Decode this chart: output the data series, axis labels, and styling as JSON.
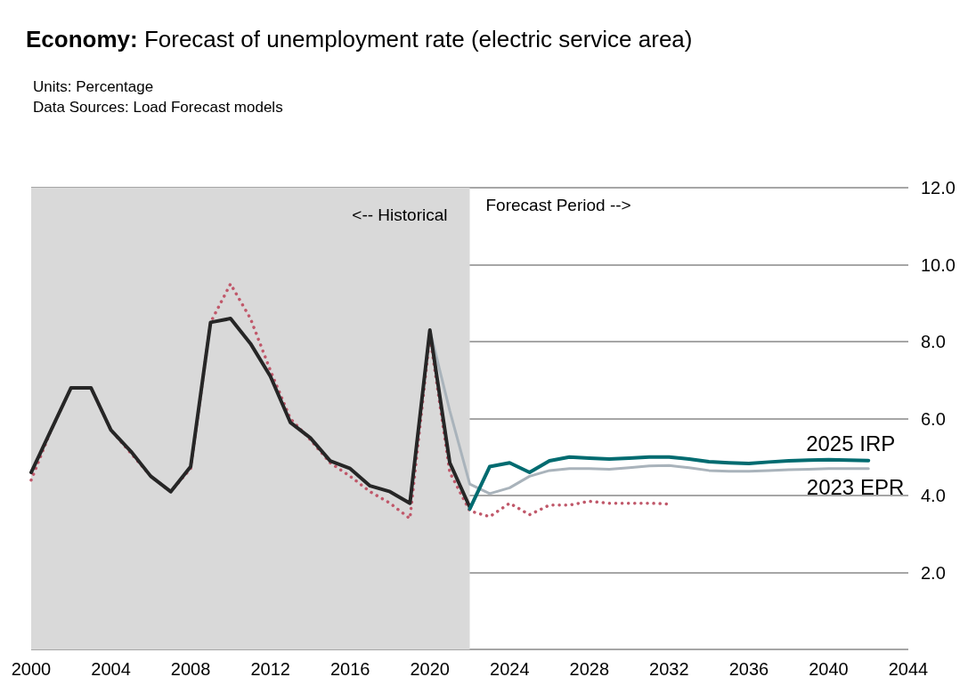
{
  "chart_data": {
    "type": "line",
    "title": "Economy: Forecast of unemployment rate (electric service area)",
    "annotations": [
      "Units: Percentage",
      "Data Sources: Load Forecast models",
      {
        "text": "Forecast Period -->",
        "x": 2022,
        "y": 11.5
      }
    ],
    "xlim": [
      2000,
      2044
    ],
    "xticks": [
      2000,
      2004,
      2008,
      2012,
      2016,
      2020,
      2024,
      2028,
      2032,
      2036,
      2040,
      2044
    ],
    "ylim": [
      0,
      12
    ],
    "yticks": [
      {
        "value": 0,
        "label": null
      },
      {
        "value": 2,
        "label": "2.0"
      },
      {
        "value": 4,
        "label": "4.0"
      },
      {
        "value": 6,
        "label": "6.0"
      },
      {
        "value": 8,
        "label": "8.0"
      },
      {
        "value": 10,
        "label": "10.0"
      },
      {
        "value": 12,
        "label": "12.0"
      }
    ],
    "grid": "y",
    "legend": false,
    "marker": "none",
    "bands": [
      {
        "axis": "x",
        "from": 2000,
        "to": 2022,
        "label": "<-- Historical",
        "color": "#d9d9d9"
      }
    ],
    "series": [
      {
        "name": "2023 EPR",
        "color": "#a9b3bb",
        "x": [
          2019,
          2020,
          2021,
          2022,
          2023,
          2024,
          2025,
          2026,
          2027,
          2028,
          2029,
          2030,
          2031,
          2032,
          2033,
          2034,
          2035,
          2036,
          2037,
          2038,
          2039,
          2040,
          2041,
          2042
        ],
        "values": [
          3.8,
          8.3,
          6.2,
          4.3,
          4.05,
          4.2,
          4.5,
          4.65,
          4.7,
          4.7,
          4.68,
          4.72,
          4.77,
          4.78,
          4.72,
          4.65,
          4.63,
          4.63,
          4.65,
          4.67,
          4.68,
          4.7,
          4.7,
          4.7
        ]
      },
      {
        "color": "#c0586a",
        "line_style": "dotted",
        "x": [
          2000,
          2001,
          2002,
          2003,
          2004,
          2005,
          2006,
          2007,
          2008,
          2009,
          2010,
          2011,
          2012,
          2013,
          2014,
          2015,
          2016,
          2017,
          2018,
          2019,
          2020,
          2021,
          2022,
          2023,
          2024,
          2025,
          2026,
          2027,
          2028,
          2029,
          2030,
          2031,
          2032
        ],
        "values": [
          4.4,
          5.7,
          6.8,
          6.8,
          5.7,
          5.1,
          4.5,
          4.1,
          4.7,
          8.5,
          9.5,
          8.6,
          7.25,
          6.0,
          5.45,
          4.85,
          4.5,
          4.1,
          3.8,
          3.4,
          8.15,
          4.6,
          3.6,
          3.45,
          3.8,
          3.5,
          3.75,
          3.75,
          3.85,
          3.8,
          3.8,
          3.8,
          3.78
        ]
      },
      {
        "color": "#262626",
        "x": [
          2000,
          2001,
          2002,
          2003,
          2004,
          2005,
          2006,
          2007,
          2008,
          2009,
          2010,
          2011,
          2012,
          2013,
          2014,
          2015,
          2016,
          2017,
          2018,
          2019,
          2020,
          2021,
          2022
        ],
        "values": [
          4.6,
          5.7,
          6.8,
          6.8,
          5.7,
          5.15,
          4.5,
          4.1,
          4.75,
          8.5,
          8.6,
          7.95,
          7.1,
          5.9,
          5.5,
          4.9,
          4.7,
          4.25,
          4.1,
          3.8,
          8.3,
          4.85,
          3.7
        ]
      },
      {
        "name": "2025 IRP",
        "color": "#006b70",
        "x": [
          2022,
          2023,
          2024,
          2025,
          2026,
          2027,
          2028,
          2029,
          2030,
          2031,
          2032,
          2033,
          2034,
          2035,
          2036,
          2037,
          2038,
          2039,
          2040,
          2041,
          2042
        ],
        "values": [
          3.65,
          4.75,
          4.85,
          4.6,
          4.9,
          5.0,
          4.97,
          4.95,
          4.97,
          5.0,
          5.0,
          4.95,
          4.88,
          4.85,
          4.83,
          4.87,
          4.9,
          4.92,
          4.93,
          4.92,
          4.91
        ]
      }
    ]
  }
}
